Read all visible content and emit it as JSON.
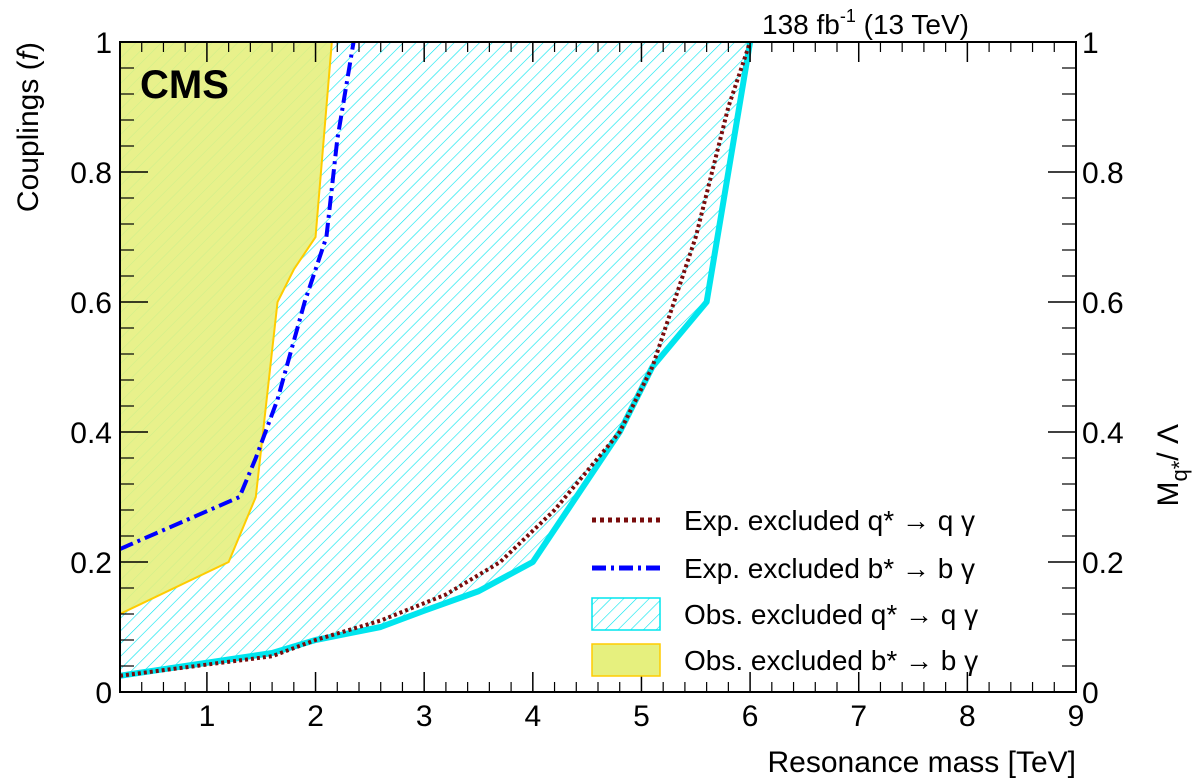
{
  "chart_data": {
    "type": "area",
    "experiment_label": "CMS",
    "lumi_label": "138 fb",
    "lumi_sup": "-1",
    "lumi_suffix": " (13 TeV)",
    "xlabel": "Resonance mass [TeV]",
    "ylabel_left_pre": "Couplings (",
    "ylabel_left_var": "f",
    "ylabel_left_post": ")",
    "ylabel_right_main": "M",
    "ylabel_right_sub": "q*",
    "ylabel_right_post": "/ Λ",
    "xlim": [
      0.2,
      9
    ],
    "ylim": [
      0,
      1
    ],
    "x_ticks": [
      1,
      2,
      3,
      4,
      5,
      6,
      7,
      8,
      9
    ],
    "y_ticks_left": [
      {
        "value": 0,
        "label": "0"
      },
      {
        "value": 0.2,
        "label": "0.2"
      },
      {
        "value": 0.4,
        "label": "0.4"
      },
      {
        "value": 0.6,
        "label": "0.6"
      },
      {
        "value": 0.8,
        "label": "0.8"
      },
      {
        "value": 1,
        "label": "1"
      }
    ],
    "y_ticks_right": [
      {
        "value": 0,
        "label": "0"
      },
      {
        "value": 0.2,
        "label": "0.2"
      },
      {
        "value": 0.4,
        "label": "0.4"
      },
      {
        "value": 0.6,
        "label": "0.6"
      },
      {
        "value": 0.8,
        "label": "0.8"
      },
      {
        "value": 1,
        "label": "1"
      }
    ],
    "grid": false,
    "legend_position": "bottom-right",
    "series": [
      {
        "key": "obs_q",
        "name": "Obs. excluded q* → q γ",
        "style": "hatched-area",
        "color": "#00e5ee",
        "points": [
          [
            0.2,
            0.025
          ],
          [
            1.0,
            0.045
          ],
          [
            1.6,
            0.06
          ],
          [
            2.0,
            0.08
          ],
          [
            2.6,
            0.1
          ],
          [
            3.0,
            0.125
          ],
          [
            3.5,
            0.155
          ],
          [
            4.0,
            0.2
          ],
          [
            4.4,
            0.3
          ],
          [
            4.8,
            0.4
          ],
          [
            5.1,
            0.5
          ],
          [
            5.6,
            0.6
          ],
          [
            6.0,
            1.0
          ]
        ]
      },
      {
        "key": "obs_b",
        "name": "Obs. excluded b* → b γ",
        "style": "filled-area",
        "color": "#ffcc00",
        "fill": "#e6f07e",
        "points": [
          [
            0.2,
            0.12
          ],
          [
            1.2,
            0.2
          ],
          [
            1.45,
            0.3
          ],
          [
            1.65,
            0.6
          ],
          [
            1.8,
            0.65
          ],
          [
            2.0,
            0.7
          ],
          [
            2.15,
            1.0
          ]
        ]
      },
      {
        "key": "exp_q",
        "name": "Exp. excluded q* → q γ",
        "style": "dotted-line",
        "color": "#7a0c0c",
        "points": [
          [
            0.2,
            0.025
          ],
          [
            1.6,
            0.055
          ],
          [
            2.0,
            0.08
          ],
          [
            2.6,
            0.11
          ],
          [
            3.2,
            0.15
          ],
          [
            3.7,
            0.2
          ],
          [
            4.2,
            0.28
          ],
          [
            4.8,
            0.4
          ],
          [
            5.1,
            0.5
          ],
          [
            5.5,
            0.7
          ],
          [
            5.8,
            0.9
          ],
          [
            6.0,
            1.0
          ]
        ]
      },
      {
        "key": "exp_b",
        "name": "Exp. excluded b* → b γ",
        "style": "dashdot-line",
        "color": "#0000ff",
        "points": [
          [
            0.2,
            0.22
          ],
          [
            1.3,
            0.3
          ],
          [
            1.45,
            0.36
          ],
          [
            1.65,
            0.45
          ],
          [
            1.9,
            0.6
          ],
          [
            2.1,
            0.7
          ],
          [
            2.2,
            0.85
          ],
          [
            2.35,
            1.0
          ]
        ]
      }
    ]
  }
}
